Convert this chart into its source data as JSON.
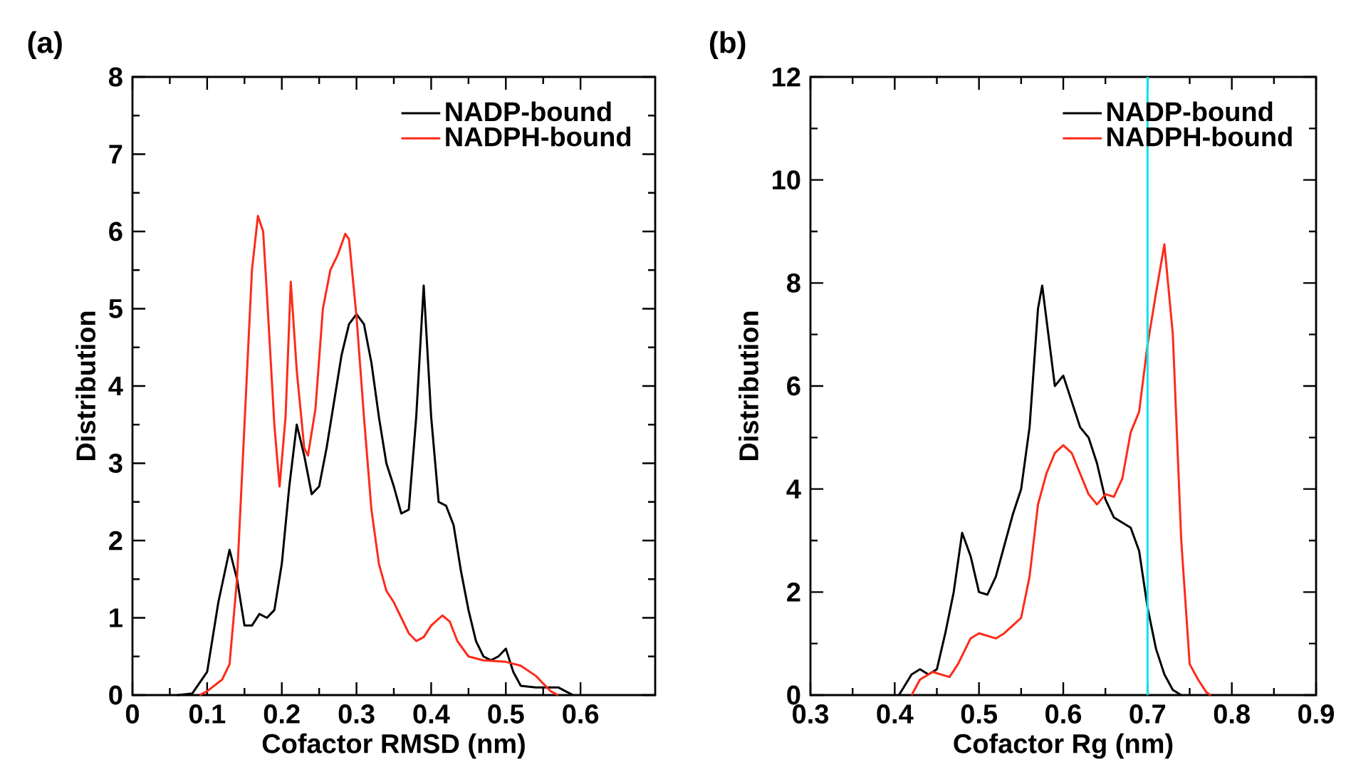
{
  "chart_data": [
    {
      "type": "line",
      "title": "(a)",
      "xlabel": "Cofactor RMSD (nm)",
      "ylabel": "Distribution",
      "xlim": [
        0,
        0.7
      ],
      "ylim": [
        0,
        8
      ],
      "xticks": [
        0,
        0.1,
        0.2,
        0.3,
        0.4,
        0.5,
        0.6
      ],
      "yticks": [
        0,
        1,
        2,
        3,
        4,
        5,
        6,
        7,
        8
      ],
      "legend": "top right",
      "grid": false,
      "series": [
        {
          "name": "NADP-bound",
          "color": "#000000",
          "x": [
            0.06,
            0.08,
            0.1,
            0.115,
            0.13,
            0.14,
            0.15,
            0.16,
            0.17,
            0.18,
            0.19,
            0.2,
            0.21,
            0.22,
            0.23,
            0.24,
            0.25,
            0.26,
            0.27,
            0.28,
            0.29,
            0.3,
            0.31,
            0.32,
            0.33,
            0.34,
            0.35,
            0.36,
            0.37,
            0.38,
            0.39,
            0.4,
            0.41,
            0.42,
            0.43,
            0.44,
            0.45,
            0.46,
            0.47,
            0.48,
            0.49,
            0.5,
            0.51,
            0.52,
            0.54,
            0.56,
            0.57,
            0.58,
            0.59
          ],
          "values": [
            0,
            0.02,
            0.3,
            1.2,
            1.88,
            1.5,
            0.9,
            0.9,
            1.05,
            1.0,
            1.1,
            1.7,
            2.7,
            3.5,
            3.1,
            2.6,
            2.7,
            3.2,
            3.8,
            4.4,
            4.8,
            4.93,
            4.8,
            4.3,
            3.6,
            3.0,
            2.7,
            2.35,
            2.4,
            3.6,
            5.3,
            3.6,
            2.5,
            2.45,
            2.2,
            1.6,
            1.1,
            0.7,
            0.5,
            0.45,
            0.5,
            0.6,
            0.3,
            0.12,
            0.1,
            0.1,
            0.1,
            0.05,
            0
          ]
        },
        {
          "name": "NADPH-bound",
          "color": "#ff2a1a",
          "x": [
            0.09,
            0.1,
            0.12,
            0.13,
            0.14,
            0.15,
            0.16,
            0.168,
            0.175,
            0.18,
            0.19,
            0.197,
            0.205,
            0.212,
            0.22,
            0.23,
            0.235,
            0.245,
            0.255,
            0.265,
            0.275,
            0.285,
            0.29,
            0.3,
            0.31,
            0.32,
            0.33,
            0.34,
            0.35,
            0.36,
            0.37,
            0.38,
            0.39,
            0.4,
            0.415,
            0.425,
            0.435,
            0.45,
            0.47,
            0.5,
            0.52,
            0.54,
            0.56,
            0.57
          ],
          "values": [
            0,
            0.05,
            0.2,
            0.4,
            1.5,
            3.5,
            5.5,
            6.2,
            6.0,
            5.2,
            3.5,
            2.7,
            3.6,
            5.35,
            4.2,
            3.2,
            3.1,
            3.7,
            5.0,
            5.5,
            5.7,
            5.97,
            5.9,
            4.9,
            3.6,
            2.4,
            1.7,
            1.35,
            1.2,
            1.0,
            0.8,
            0.7,
            0.75,
            0.9,
            1.03,
            0.95,
            0.7,
            0.5,
            0.45,
            0.43,
            0.38,
            0.25,
            0.05,
            0
          ]
        }
      ]
    },
    {
      "type": "line",
      "title": "(b)",
      "xlabel": "Cofactor Rg (nm)",
      "ylabel": "Distribution",
      "xlim": [
        0.3,
        0.9
      ],
      "ylim": [
        0,
        12
      ],
      "xticks": [
        0.3,
        0.4,
        0.5,
        0.6,
        0.7,
        0.8,
        0.9
      ],
      "yticks": [
        0,
        2,
        4,
        6,
        8,
        10,
        12
      ],
      "legend": "top right",
      "grid": false,
      "ref_lines": [
        {
          "axis": "x",
          "value": 0.7,
          "color": "#00e5ee"
        }
      ],
      "series": [
        {
          "name": "NADP-bound",
          "color": "#000000",
          "x": [
            0.405,
            0.42,
            0.43,
            0.44,
            0.45,
            0.46,
            0.47,
            0.48,
            0.49,
            0.5,
            0.51,
            0.52,
            0.53,
            0.54,
            0.55,
            0.56,
            0.57,
            0.575,
            0.58,
            0.59,
            0.6,
            0.61,
            0.62,
            0.63,
            0.64,
            0.65,
            0.66,
            0.67,
            0.68,
            0.69,
            0.7,
            0.71,
            0.72,
            0.73,
            0.74
          ],
          "values": [
            0,
            0.4,
            0.5,
            0.4,
            0.5,
            1.2,
            2.0,
            3.15,
            2.7,
            2.0,
            1.95,
            2.3,
            2.9,
            3.5,
            4.0,
            5.2,
            7.5,
            7.95,
            7.3,
            6.0,
            6.2,
            5.7,
            5.2,
            5.0,
            4.5,
            3.8,
            3.45,
            3.35,
            3.25,
            2.8,
            1.7,
            0.9,
            0.4,
            0.1,
            0
          ]
        },
        {
          "name": "NADPH-bound",
          "color": "#ff2a1a",
          "x": [
            0.42,
            0.43,
            0.445,
            0.455,
            0.465,
            0.475,
            0.49,
            0.5,
            0.51,
            0.52,
            0.53,
            0.54,
            0.55,
            0.56,
            0.57,
            0.58,
            0.59,
            0.6,
            0.61,
            0.62,
            0.63,
            0.64,
            0.65,
            0.66,
            0.67,
            0.68,
            0.69,
            0.7,
            0.71,
            0.72,
            0.73,
            0.74,
            0.75,
            0.76,
            0.77,
            0.775
          ],
          "values": [
            0,
            0.3,
            0.45,
            0.4,
            0.35,
            0.6,
            1.1,
            1.2,
            1.15,
            1.1,
            1.2,
            1.35,
            1.5,
            2.3,
            3.7,
            4.3,
            4.7,
            4.85,
            4.7,
            4.3,
            3.9,
            3.7,
            3.9,
            3.85,
            4.2,
            5.1,
            5.5,
            6.8,
            7.8,
            8.75,
            7.0,
            3.0,
            0.6,
            0.3,
            0.05,
            0
          ]
        }
      ]
    }
  ]
}
